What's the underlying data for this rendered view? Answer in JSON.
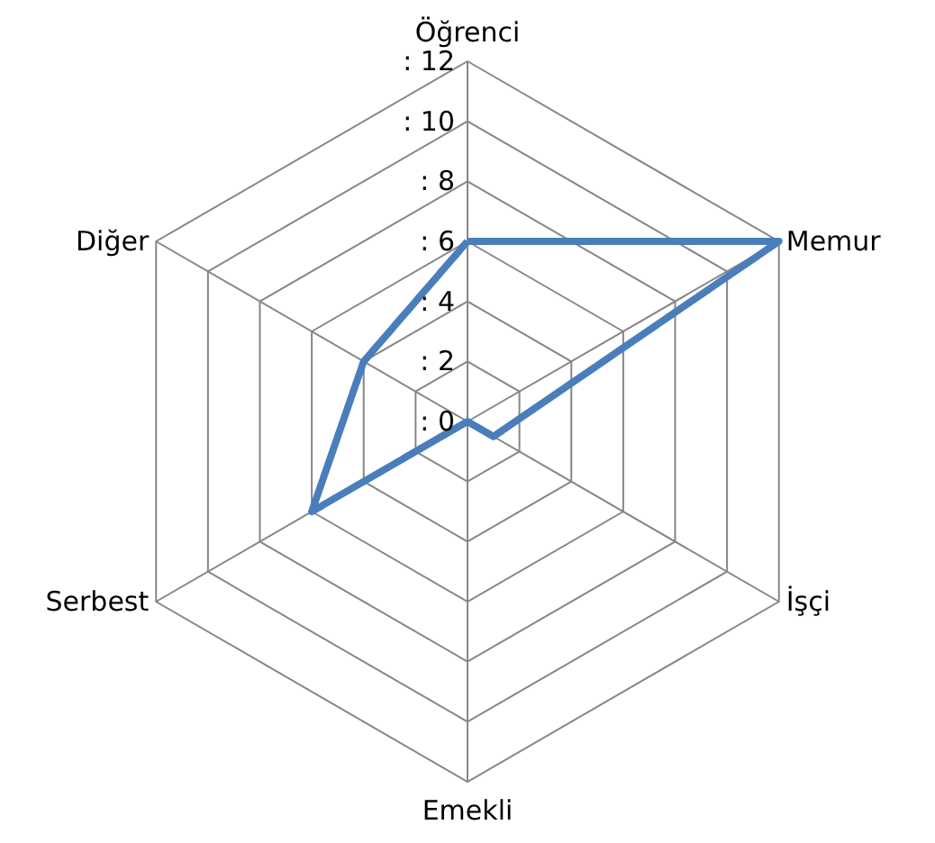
{
  "chart_data": {
    "type": "radar",
    "categories": [
      "Öğrenci",
      "Memur",
      "İşçi",
      "Emekli",
      "Serbest",
      "Diğer"
    ],
    "series": [
      {
        "color": "#4a7ebb",
        "values": [
          6,
          12,
          1,
          0,
          6,
          4
        ]
      }
    ],
    "ylim": [
      0,
      12
    ],
    "yticks": [
      {
        "value": 0,
        "label": ": 0"
      },
      {
        "value": 2,
        "label": ": 2"
      },
      {
        "value": 4,
        "label": ": 4"
      },
      {
        "value": 6,
        "label": ": 6"
      },
      {
        "value": 8,
        "label": ": 8"
      },
      {
        "value": 10,
        "label": ": 10"
      },
      {
        "value": 12,
        "label": ": 12"
      }
    ],
    "grid": true,
    "marker": "none",
    "line_style": "solid"
  }
}
